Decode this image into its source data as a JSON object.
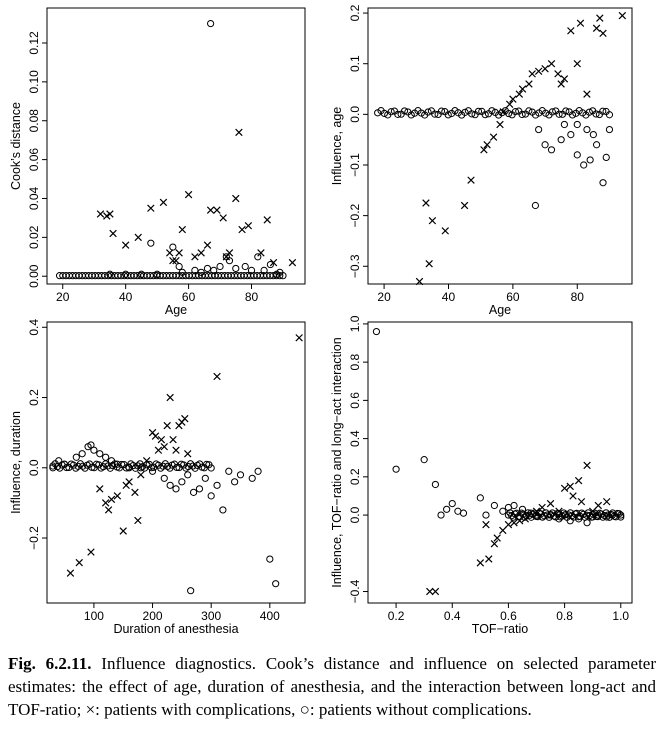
{
  "caption": {
    "label": "Fig. 6.2.11.",
    "text": "Influence diagnostics. Cook’s distance and influence on selected parameter estimates: the effect of age, duration of anesthesia, and the interaction between long-act and TOF-ratio; ×: patients with complications, ○: patients without complications."
  },
  "legend": {
    "with_complications": "×",
    "without_complications": "○"
  },
  "chart_data": [
    {
      "type": "scatter",
      "xlabel": "Age",
      "ylabel": "Cook’s distance",
      "xlim": [
        15,
        97
      ],
      "ylim": [
        -0.004,
        0.138
      ],
      "xticks": [
        20,
        40,
        60,
        80
      ],
      "xtick_labels": [
        "20",
        "40",
        "60",
        "80"
      ],
      "yticks": [
        0,
        0.02,
        0.04,
        0.06,
        0.08,
        0.1,
        0.12
      ],
      "ytick_labels": [
        "0.00",
        "0.02",
        "0.04",
        "0.06",
        "0.08",
        "0.10",
        "0.12"
      ],
      "series": [
        {
          "marker": "x",
          "points": [
            [
              32,
              0.032
            ],
            [
              34,
              0.031
            ],
            [
              35,
              0.032
            ],
            [
              36,
              0.022
            ],
            [
              40,
              0.016
            ],
            [
              44,
              0.02
            ],
            [
              48,
              0.035
            ],
            [
              52,
              0.038
            ],
            [
              54,
              0.012
            ],
            [
              55,
              0.008
            ],
            [
              56,
              0.008
            ],
            [
              57,
              0.012
            ],
            [
              58,
              0.024
            ],
            [
              60,
              0.042
            ],
            [
              62,
              0.01
            ],
            [
              64,
              0.012
            ],
            [
              66,
              0.016
            ],
            [
              67,
              0.034
            ],
            [
              69,
              0.034
            ],
            [
              71,
              0.03
            ],
            [
              72,
              0.01
            ],
            [
              73,
              0.012
            ],
            [
              75,
              0.04
            ],
            [
              76,
              0.074
            ],
            [
              77,
              0.024
            ],
            [
              79,
              0.026
            ],
            [
              83,
              0.012
            ],
            [
              85,
              0.029
            ],
            [
              87,
              0.007
            ],
            [
              93,
              0.007
            ]
          ]
        },
        {
          "marker": "o",
          "points": [
            [
              67,
              0.13
            ],
            [
              48,
              0.017
            ],
            [
              55,
              0.015
            ],
            [
              57,
              0.005
            ],
            [
              62,
              0.003
            ],
            [
              66,
              0.004
            ],
            [
              68,
              0.003
            ],
            [
              70,
              0.005
            ],
            [
              72,
              0.01
            ],
            [
              73,
              0.008
            ],
            [
              75,
              0.004
            ],
            [
              78,
              0.005
            ],
            [
              80,
              0.003
            ],
            [
              82,
              0.01
            ],
            [
              84,
              0.003
            ],
            [
              86,
              0.006
            ],
            [
              88,
              0.001
            ],
            [
              89,
              0.002
            ],
            [
              35,
              0.001
            ],
            [
              40,
              0.001
            ],
            [
              45,
              0.001
            ],
            [
              50,
              0.001
            ],
            [
              58,
              0.002
            ],
            [
              64,
              0.002
            ]
          ]
        }
      ]
    },
    {
      "type": "scatter",
      "xlabel": "Age",
      "ylabel": "Influence, age",
      "xlim": [
        15,
        97
      ],
      "ylim": [
        -0.335,
        0.21
      ],
      "xticks": [
        20,
        40,
        60,
        80
      ],
      "xtick_labels": [
        "20",
        "40",
        "60",
        "80"
      ],
      "yticks": [
        -0.3,
        -0.2,
        -0.1,
        0,
        0.1,
        0.2
      ],
      "ytick_labels": [
        "−0.3",
        "−0.2",
        "−0.1",
        "0.0",
        "0.1",
        "0.2"
      ],
      "series": [
        {
          "marker": "x",
          "points": [
            [
              31,
              -0.33
            ],
            [
              33,
              -0.175
            ],
            [
              34,
              -0.295
            ],
            [
              35,
              -0.21
            ],
            [
              39,
              -0.23
            ],
            [
              45,
              -0.18
            ],
            [
              47,
              -0.13
            ],
            [
              51,
              -0.07
            ],
            [
              52,
              -0.06
            ],
            [
              54,
              -0.045
            ],
            [
              56,
              -0.02
            ],
            [
              57,
              0.005
            ],
            [
              59,
              0.02
            ],
            [
              60,
              0.03
            ],
            [
              62,
              0.04
            ],
            [
              63,
              0.05
            ],
            [
              65,
              0.06
            ],
            [
              66,
              0.08
            ],
            [
              68,
              0.085
            ],
            [
              70,
              0.09
            ],
            [
              72,
              0.1
            ],
            [
              74,
              0.08
            ],
            [
              76,
              0.07
            ],
            [
              78,
              0.165
            ],
            [
              80,
              0.1
            ],
            [
              81,
              0.18
            ],
            [
              86,
              0.17
            ],
            [
              87,
              0.19
            ],
            [
              88,
              0.16
            ],
            [
              94,
              0.195
            ],
            [
              83,
              0.04
            ],
            [
              75,
              0.06
            ]
          ]
        },
        {
          "marker": "o",
          "points": [
            [
              67,
              -0.18
            ],
            [
              70,
              -0.06
            ],
            [
              72,
              -0.07
            ],
            [
              75,
              -0.05
            ],
            [
              78,
              -0.04
            ],
            [
              80,
              -0.08
            ],
            [
              82,
              -0.1
            ],
            [
              84,
              -0.09
            ],
            [
              86,
              -0.06
            ],
            [
              88,
              -0.135
            ],
            [
              89,
              -0.085
            ],
            [
              90,
              -0.03
            ],
            [
              85,
              -0.04
            ],
            [
              76,
              -0.02
            ],
            [
              68,
              -0.03
            ],
            [
              80,
              -0.02
            ],
            [
              83,
              -0.03
            ]
          ]
        }
      ]
    },
    {
      "type": "scatter",
      "xlabel": "Duration of anesthesia",
      "ylabel": "Influence, duration",
      "xlim": [
        20,
        460
      ],
      "ylim": [
        -0.385,
        0.415
      ],
      "xticks": [
        100,
        200,
        300,
        400
      ],
      "xtick_labels": [
        "100",
        "200",
        "300",
        "400"
      ],
      "yticks": [
        -0.2,
        0,
        0.2,
        0.4
      ],
      "ytick_labels": [
        "−0.2",
        "0.0",
        "0.2",
        "0.4"
      ],
      "series": [
        {
          "marker": "x",
          "points": [
            [
              60,
              -0.3
            ],
            [
              75,
              -0.27
            ],
            [
              95,
              -0.24
            ],
            [
              110,
              -0.06
            ],
            [
              120,
              -0.1
            ],
            [
              125,
              -0.12
            ],
            [
              130,
              -0.09
            ],
            [
              140,
              -0.08
            ],
            [
              150,
              -0.18
            ],
            [
              155,
              -0.05
            ],
            [
              160,
              -0.04
            ],
            [
              170,
              -0.07
            ],
            [
              175,
              -0.15
            ],
            [
              180,
              -0.02
            ],
            [
              190,
              0.02
            ],
            [
              200,
              0.1
            ],
            [
              205,
              0.09
            ],
            [
              210,
              0.05
            ],
            [
              215,
              0.08
            ],
            [
              220,
              0.06
            ],
            [
              225,
              0.12
            ],
            [
              230,
              0.2
            ],
            [
              235,
              0.08
            ],
            [
              240,
              0.05
            ],
            [
              245,
              0.12
            ],
            [
              250,
              0.13
            ],
            [
              255,
              0.14
            ],
            [
              260,
              0.04
            ],
            [
              310,
              0.26
            ],
            [
              450,
              0.37
            ]
          ]
        },
        {
          "marker": "o",
          "points": [
            [
              30,
              0.0
            ],
            [
              40,
              0.02
            ],
            [
              50,
              0.01
            ],
            [
              70,
              0.03
            ],
            [
              80,
              0.04
            ],
            [
              90,
              0.06
            ],
            [
              95,
              0.065
            ],
            [
              100,
              0.05
            ],
            [
              110,
              0.04
            ],
            [
              120,
              0.03
            ],
            [
              130,
              0.02
            ],
            [
              140,
              0.01
            ],
            [
              160,
              0.0
            ],
            [
              180,
              0.0
            ],
            [
              200,
              -0.01
            ],
            [
              220,
              -0.03
            ],
            [
              230,
              -0.05
            ],
            [
              240,
              -0.06
            ],
            [
              250,
              -0.04
            ],
            [
              260,
              -0.02
            ],
            [
              265,
              -0.35
            ],
            [
              270,
              -0.07
            ],
            [
              280,
              -0.06
            ],
            [
              290,
              -0.03
            ],
            [
              300,
              -0.08
            ],
            [
              310,
              -0.05
            ],
            [
              320,
              -0.12
            ],
            [
              330,
              -0.01
            ],
            [
              340,
              -0.04
            ],
            [
              350,
              -0.02
            ],
            [
              370,
              -0.03
            ],
            [
              380,
              -0.01
            ],
            [
              400,
              -0.26
            ],
            [
              410,
              -0.33
            ]
          ]
        }
      ]
    },
    {
      "type": "scatter",
      "xlabel": "TOF−ratio",
      "ylabel": "Influence, TOF−ratio and long−act interaction",
      "xlim": [
        0.1,
        1.04
      ],
      "ylim": [
        -0.46,
        1.01
      ],
      "xticks": [
        0.2,
        0.4,
        0.6,
        0.8,
        1.0
      ],
      "xtick_labels": [
        "0.2",
        "0.4",
        "0.6",
        "0.8",
        "1.0"
      ],
      "yticks": [
        -0.4,
        0,
        0.2,
        0.4,
        0.6,
        0.8,
        1.0
      ],
      "ytick_labels": [
        "−0.4",
        "0.0",
        "0.2",
        "0.4",
        "0.6",
        "0.8",
        "1.0"
      ],
      "series": [
        {
          "marker": "x",
          "points": [
            [
              0.32,
              -0.4
            ],
            [
              0.34,
              -0.4
            ],
            [
              0.5,
              -0.25
            ],
            [
              0.53,
              -0.23
            ],
            [
              0.52,
              -0.05
            ],
            [
              0.55,
              -0.15
            ],
            [
              0.56,
              -0.12
            ],
            [
              0.58,
              -0.08
            ],
            [
              0.6,
              -0.05
            ],
            [
              0.62,
              -0.04
            ],
            [
              0.64,
              -0.03
            ],
            [
              0.66,
              -0.02
            ],
            [
              0.7,
              0.02
            ],
            [
              0.75,
              0.06
            ],
            [
              0.8,
              0.14
            ],
            [
              0.82,
              0.15
            ],
            [
              0.83,
              0.1
            ],
            [
              0.85,
              0.18
            ],
            [
              0.88,
              0.26
            ],
            [
              0.86,
              0.07
            ],
            [
              0.9,
              0.02
            ],
            [
              0.92,
              0.05
            ],
            [
              0.95,
              0.07
            ],
            [
              0.78,
              0.02
            ],
            [
              0.72,
              0.04
            ]
          ]
        },
        {
          "marker": "o",
          "points": [
            [
              0.13,
              0.96
            ],
            [
              0.2,
              0.24
            ],
            [
              0.3,
              0.29
            ],
            [
              0.34,
              0.16
            ],
            [
              0.36,
              0.0
            ],
            [
              0.38,
              0.03
            ],
            [
              0.4,
              0.06
            ],
            [
              0.42,
              0.02
            ],
            [
              0.44,
              0.01
            ],
            [
              0.5,
              0.09
            ],
            [
              0.52,
              0.0
            ],
            [
              0.55,
              0.05
            ],
            [
              0.58,
              0.02
            ],
            [
              0.6,
              0.04
            ],
            [
              0.62,
              0.05
            ],
            [
              0.65,
              0.03
            ],
            [
              0.68,
              0.01
            ],
            [
              0.7,
              0.0
            ],
            [
              0.72,
              -0.01
            ],
            [
              0.75,
              0.0
            ],
            [
              0.78,
              -0.02
            ],
            [
              0.8,
              0.0
            ],
            [
              0.82,
              -0.03
            ],
            [
              0.85,
              -0.02
            ],
            [
              0.88,
              -0.04
            ],
            [
              0.9,
              -0.01
            ],
            [
              0.92,
              0.0
            ],
            [
              0.95,
              -0.01
            ],
            [
              0.97,
              0.0
            ],
            [
              1.0,
              0.0
            ]
          ]
        }
      ]
    }
  ]
}
